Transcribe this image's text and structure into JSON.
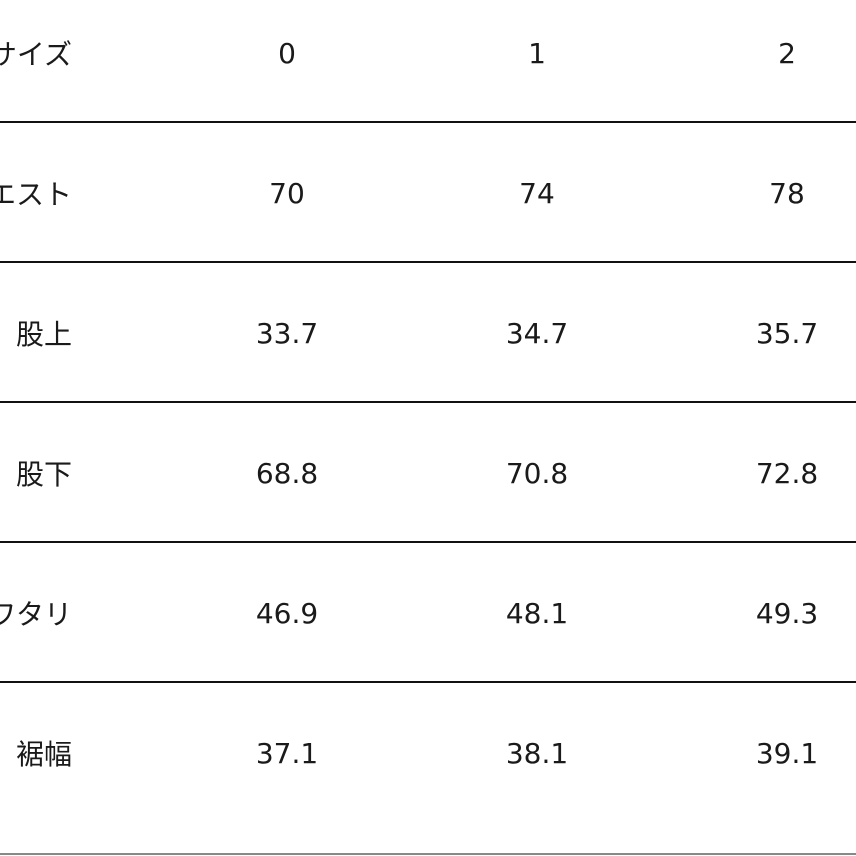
{
  "table": {
    "header": {
      "label": "サイズ",
      "values": [
        "0",
        "1",
        "2"
      ]
    },
    "rows": [
      {
        "label": "ウエスト",
        "values": [
          "70",
          "74",
          "78"
        ]
      },
      {
        "label": "股上",
        "values": [
          "33.7",
          "34.7",
          "35.7"
        ]
      },
      {
        "label": "股下",
        "values": [
          "68.8",
          "70.8",
          "72.8"
        ]
      },
      {
        "label": "ワタリ",
        "values": [
          "46.9",
          "48.1",
          "49.3"
        ]
      },
      {
        "label": "裾幅",
        "values": [
          "37.1",
          "38.1",
          "39.1"
        ]
      }
    ]
  }
}
